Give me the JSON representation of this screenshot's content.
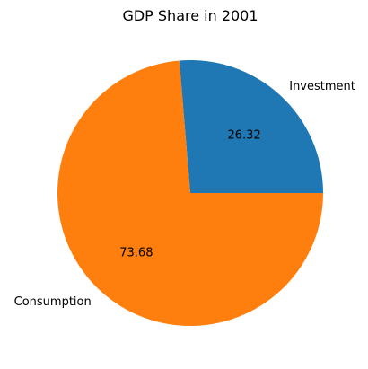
{
  "chart_data": {
    "type": "pie",
    "title": "GDP Share in 2001",
    "slices": [
      {
        "label": "Investment",
        "value": 26.32,
        "value_label": "26.32",
        "color": "#1f77b4"
      },
      {
        "label": "Consumption",
        "value": 73.68,
        "value_label": "73.68",
        "color": "#ff7f0e"
      }
    ],
    "start_angle_deg": 0,
    "direction": "counterclockwise",
    "legend": "none"
  }
}
